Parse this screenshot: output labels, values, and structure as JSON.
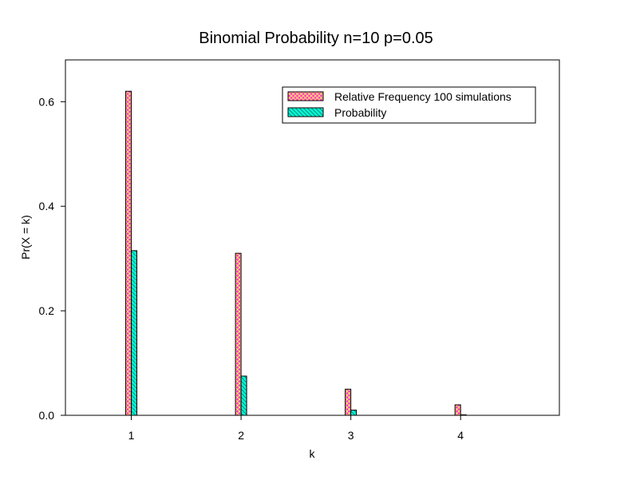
{
  "chart_data": {
    "type": "bar",
    "title": "Binomial Probability n=10 p=0.05",
    "xlabel": "k",
    "ylabel": "Pr(X = k)",
    "categories": [
      "1",
      "2",
      "3",
      "4"
    ],
    "x": [
      1,
      2,
      3,
      4
    ],
    "xlim": [
      0.4,
      4.9
    ],
    "ylim": [
      0,
      0.68
    ],
    "yticks": [
      0.0,
      0.2,
      0.4,
      0.6
    ],
    "ytick_labels": [
      "0.0",
      "0.2",
      "0.4",
      "0.6"
    ],
    "grid": false,
    "legend_position": "top-right",
    "series": [
      {
        "name": "Relative Frequency 100 simulations",
        "values": [
          0.62,
          0.31,
          0.05,
          0.02
        ],
        "color": "#ff33cc",
        "hatch_color": "#ffe066"
      },
      {
        "name": "Probability",
        "values": [
          0.315,
          0.075,
          0.01,
          0.001
        ],
        "color": "#00ffcc",
        "hatch_color": "#1a6a8a"
      }
    ]
  }
}
